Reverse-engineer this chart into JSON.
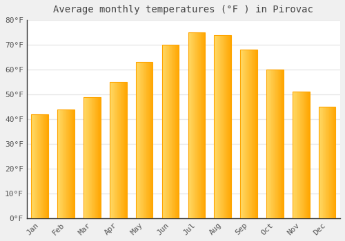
{
  "months": [
    "Jan",
    "Feb",
    "Mar",
    "Apr",
    "May",
    "Jun",
    "Jul",
    "Aug",
    "Sep",
    "Oct",
    "Nov",
    "Dec"
  ],
  "temperatures": [
    42,
    44,
    49,
    55,
    63,
    70,
    75,
    74,
    68,
    60,
    51,
    45
  ],
  "bar_color_left": "#FFD966",
  "bar_color_right": "#FFA500",
  "bar_color_mid": "#FFC125",
  "title": "Average monthly temperatures (°F ) in Pirovac",
  "ylim": [
    0,
    80
  ],
  "yticks": [
    0,
    10,
    20,
    30,
    40,
    50,
    60,
    70,
    80
  ],
  "ytick_labels": [
    "0°F",
    "10°F",
    "20°F",
    "30°F",
    "40°F",
    "50°F",
    "60°F",
    "70°F",
    "80°F"
  ],
  "plot_bg_color": "#ffffff",
  "fig_bg_color": "#f0f0f0",
  "grid_color": "#e8e8e8",
  "title_fontsize": 10,
  "tick_fontsize": 8,
  "font_family": "monospace",
  "bar_width": 0.65,
  "spine_color": "#333333"
}
